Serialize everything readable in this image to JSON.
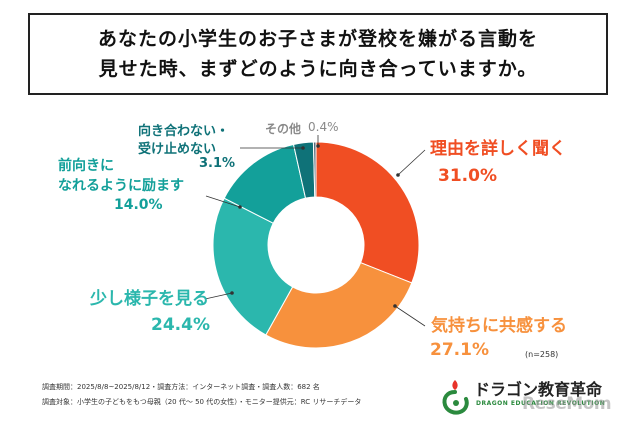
{
  "title": {
    "line1": "あなたの小学生のお子さまが登校を嫌がる言動を",
    "line2": "見せた時、まずどのように向き合っていますか。"
  },
  "chart_data": {
    "type": "donut",
    "slices": [
      {
        "label": "理由を詳しく聞く",
        "value": 31.0,
        "value_text": "31.0%",
        "color": "#f04e23"
      },
      {
        "label": "気持ちに共感する",
        "value": 27.1,
        "value_text": "27.1%",
        "color": "#f7913d"
      },
      {
        "label": "少し様子を見る",
        "value": 24.4,
        "value_text": "24.4%",
        "color": "#2bb7ad"
      },
      {
        "label_lines": [
          "前向きに",
          "なれるように励ます"
        ],
        "value": 14.0,
        "value_text": "14.0%",
        "color": "#13a09a"
      },
      {
        "label_lines": [
          "向き合わない・",
          "受け止めない"
        ],
        "value": 3.1,
        "value_text": "3.1%",
        "color": "#0f7278"
      },
      {
        "label": "その他",
        "value": 0.4,
        "value_text": "0.4%",
        "color": "#5a6a7a"
      }
    ],
    "sample_size": "(n=258)"
  },
  "footnotes": {
    "line1": "調査期間：2025/8/8~2025/8/12・調査方法：インターネット調査・調査人数：682 名",
    "line2": "調査対象：小学生の子どもをもつ母親（20 代～ 50 代の女性）・モニター提供元：RC リサーチデータ"
  },
  "logo": {
    "name": "ドラゴン教育革命",
    "sub": "DRAGON EDUCATION REVOLUTION"
  },
  "watermark": "ReseMom"
}
